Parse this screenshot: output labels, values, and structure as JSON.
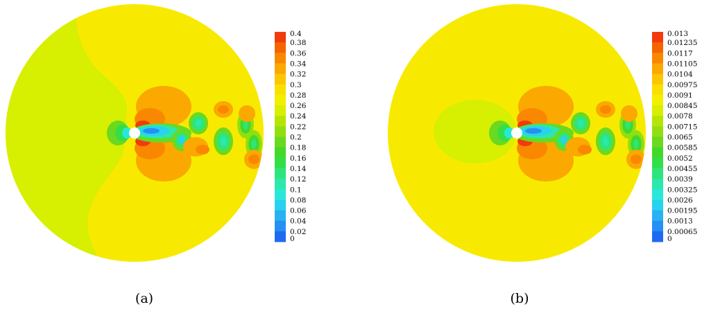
{
  "chart_data": [
    {
      "type": "heatmap",
      "panel_label": "(a)",
      "colorbar_ticks": [
        "0.4",
        "0.38",
        "0.36",
        "0.34",
        "0.32",
        "0.3",
        "0.28",
        "0.26",
        "0.24",
        "0.22",
        "0.2",
        "0.18",
        "0.16",
        "0.14",
        "0.12",
        "0.1",
        "0.08",
        "0.06",
        "0.04",
        "0.02",
        "0"
      ],
      "colorbar_range": [
        0,
        0.4
      ],
      "colors": {
        "left_region": "#d7ef00",
        "right_region": "#f7ea00",
        "cylinder": "#ffffff"
      }
    },
    {
      "type": "heatmap",
      "panel_label": "(b)",
      "colorbar_ticks": [
        "0.013",
        "0.01235",
        "0.0117",
        "0.01105",
        "0.0104",
        "0.00975",
        "0.0091",
        "0.00845",
        "0.0078",
        "0.00715",
        "0.0065",
        "0.00585",
        "0.0052",
        "0.00455",
        "0.0039",
        "0.00325",
        "0.0026",
        "0.00195",
        "0.0013",
        "0.00065",
        "0"
      ],
      "colorbar_range": [
        0,
        0.013
      ],
      "colors": {
        "background": "#f7ea00",
        "upstream_blob": "#d7ef00",
        "cylinder": "#ffffff"
      }
    }
  ],
  "colormap": [
    "#1a3df0",
    "#1f6af2",
    "#2590f4",
    "#28b2f2",
    "#29d2ee",
    "#2ae8d8",
    "#2be8ac",
    "#2ee57d",
    "#33df48",
    "#43d92b",
    "#6ad91f",
    "#91df11",
    "#b6e505",
    "#d7ef00",
    "#f2ef00",
    "#fae000",
    "#fcc600",
    "#fba800",
    "#f98800",
    "#f66400",
    "#f23a0c"
  ]
}
